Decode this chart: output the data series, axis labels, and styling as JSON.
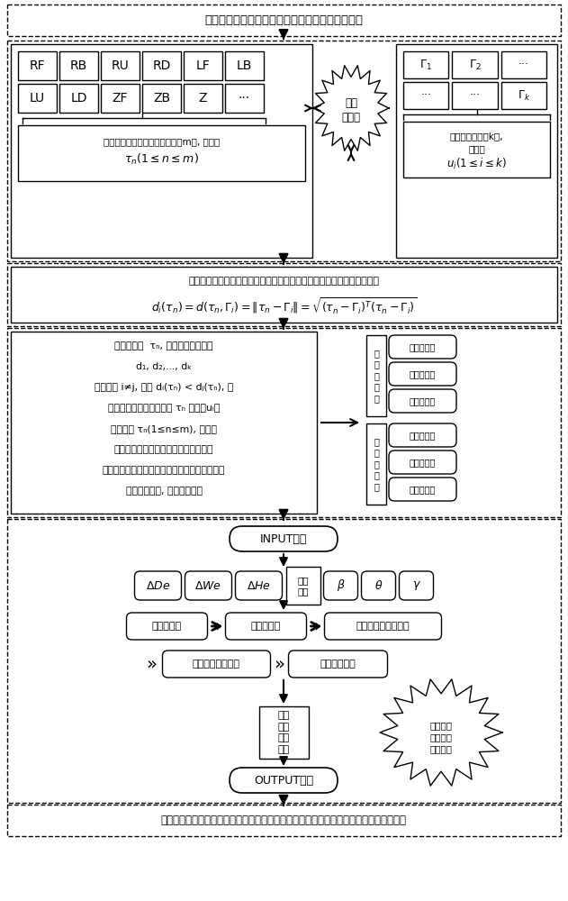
{
  "title": "旋转电弧跟踪系统实时采集未知姿态焊接电流信号",
  "bottom_text": "六自由度智能焊接机器人系统根据接收的偏差信号分析运算后得到六轴的纠偏运动补偿量",
  "row1_left": [
    "RF",
    "RB",
    "RU",
    "RD",
    "LF",
    "LB"
  ],
  "row2_left": [
    "LU",
    "LD",
    "ZF",
    "ZB",
    "Z",
    "···"
  ],
  "row1_right": [
    "Γ₁",
    "Γ₂",
    "···"
  ],
  "row2_right": [
    "···",
    "···",
    "Γₖ"
  ],
  "classifier_label": "维度\n分类器",
  "left_desc": "未知焊枪姿态的空间特征向量共m类, 记作:\nτₙ(1≤n≤m)",
  "right_desc": "经验特征向量共k类,\n记作: uᵢ(1≤i≤k)",
  "euler_title": "未知焊枪姿态的特征向量与经验焊枪位姿特征空间向量之间的欧式距离：",
  "euler_formula": "dᵢ(τₙ)=d(τₙ,Γᵢ)=‖τₙ-Γᵢ‖=√(τₙ-Γᵢ)ᵀ(τₙ-Γᵢ)",
  "process_text": "对于每一个 τₙ, 求得一组距离集：\nd₁, d₂,..., dₖ\n对所有的 i≠j, 如果 dᵢ(τₙ) < dⱼ(τₙ), 则\n当前焊枪姿态的特征向量 τₙ 归入第uᵢ类\n对所有的 τₙ(1≤n≤m), 可求得\n对应的经验焊枪位姿特征空间向量类别\n经验焊枪位姿对应多个未知焊枪姿态的特征向量\n取距离最小的, 其余均可舍弃",
  "pos_offset_labels": [
    "位\n置\n偏\n移\n量",
    "位\n置\n偏\n移\n量"
  ],
  "right_offset_labels": [
    "正交偏移量",
    "正交偏移量",
    "高度偏移量",
    "航向偏移角",
    "横滚偏移角",
    "俯仰偏移角"
  ],
  "input_label": "INPUT端口",
  "output_label": "OUTPUT端口",
  "delta_labels": [
    "ΔDe",
    "ΔWe",
    "ΔHe"
  ],
  "signal_label": "电流\n信号",
  "greek_labels": [
    "β",
    "θ",
    "γ"
  ],
  "module1": "晶体管模块",
  "module2": "逻辑门模块",
  "module3": "可编程逻辑整列模块",
  "module4": "微码执行单元模块",
  "module5": "解码单元模块",
  "control_label": "高低\n电平\n控制\n信号",
  "burst_label": "旋转电弧\n实时跟踪\n扩展串口",
  "bg_color": "#ffffff",
  "box_color": "#000000",
  "dash_color": "#000000"
}
